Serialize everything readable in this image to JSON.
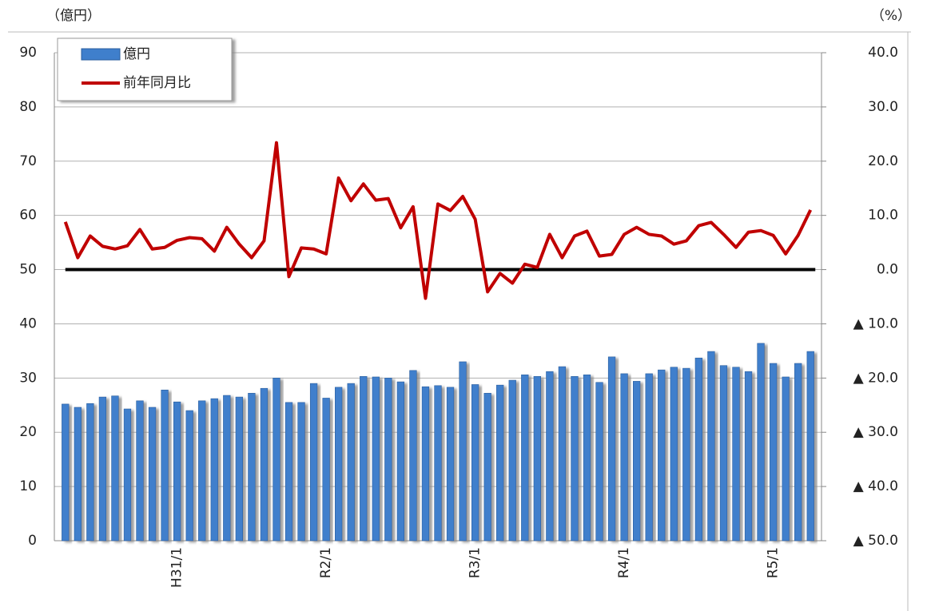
{
  "chart_data": {
    "type": "bar_line",
    "y_label": "（億円）",
    "y2_label": "（%）",
    "categories": [
      null,
      null,
      null,
      null,
      null,
      null,
      null,
      null,
      null,
      "H31/1",
      null,
      null,
      null,
      null,
      null,
      null,
      null,
      null,
      null,
      null,
      null,
      "R2/1",
      null,
      null,
      null,
      null,
      null,
      null,
      null,
      null,
      null,
      null,
      null,
      "R3/1",
      null,
      null,
      null,
      null,
      null,
      null,
      null,
      null,
      null,
      null,
      null,
      "R4/1",
      null,
      null,
      null,
      null,
      null,
      null,
      null,
      null,
      null,
      null,
      null,
      "R5/1",
      null,
      null,
      null
    ],
    "series": [
      {
        "name": "億円",
        "type": "bar",
        "color": "#3f7fcc",
        "values": [
          25.2,
          24.6,
          25.3,
          26.5,
          26.7,
          24.3,
          25.8,
          24.6,
          27.8,
          25.6,
          24.0,
          25.8,
          26.2,
          26.8,
          26.5,
          27.2,
          28.1,
          30.0,
          25.5,
          25.5,
          29.0,
          26.3,
          28.3,
          29.0,
          30.3,
          30.2,
          30.0,
          29.3,
          31.4,
          28.4,
          28.6,
          28.3,
          33.0,
          28.8,
          27.2,
          28.7,
          29.6,
          30.6,
          30.3,
          31.2,
          32.1,
          30.3,
          30.6,
          29.2,
          33.9,
          30.8,
          29.4,
          30.8,
          31.5,
          32.0,
          31.8,
          33.7,
          34.9,
          32.3,
          32.0,
          31.2,
          36.4,
          32.7,
          30.2,
          32.7,
          34.9
        ]
      },
      {
        "name": "前年同月比",
        "type": "line",
        "axis": "y2",
        "color": "#c00000",
        "values": [
          8.8,
          2.2,
          6.2,
          4.3,
          3.8,
          4.4,
          7.4,
          3.8,
          4.1,
          5.4,
          5.9,
          5.7,
          3.4,
          7.8,
          4.7,
          2.2,
          5.3,
          23.4,
          -1.3,
          4.0,
          3.8,
          2.9,
          16.9,
          12.7,
          15.8,
          12.8,
          13.1,
          7.7,
          11.6,
          -5.3,
          12.1,
          10.9,
          13.5,
          9.3,
          -4.1,
          -0.7,
          -2.5,
          1.0,
          0.4,
          6.5,
          2.2,
          6.2,
          7.1,
          2.5,
          2.8,
          6.5,
          7.8,
          6.5,
          6.2,
          4.7,
          5.3,
          8.1,
          8.7,
          6.5,
          4.1,
          6.9,
          7.2,
          6.3,
          2.9,
          6.3,
          11.0
        ]
      }
    ],
    "ylim": [
      0,
      90
    ],
    "yticks": [
      0,
      10,
      20,
      30,
      40,
      50,
      60,
      70,
      80,
      90
    ],
    "y2lim": [
      -50,
      40
    ],
    "y2ticks": [
      {
        "value": 40,
        "label": "40.0"
      },
      {
        "value": 30,
        "label": "30.0"
      },
      {
        "value": 20,
        "label": "20.0"
      },
      {
        "value": 10,
        "label": "10.0"
      },
      {
        "value": 0,
        "label": "0.0"
      },
      {
        "value": -10,
        "label": "▲ 10.0"
      },
      {
        "value": -20,
        "label": "▲ 20.0"
      },
      {
        "value": -30,
        "label": "▲ 30.0"
      },
      {
        "value": -40,
        "label": "▲ 40.0"
      },
      {
        "value": -50,
        "label": "▲ 50.0"
      }
    ],
    "grid": true,
    "legend": "top-left",
    "reference_line": {
      "axis": "y2",
      "value": 0,
      "color": "#000000"
    }
  }
}
